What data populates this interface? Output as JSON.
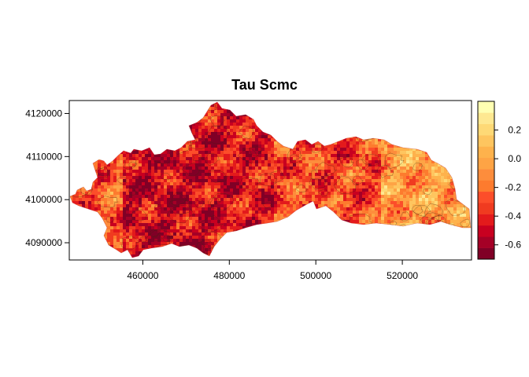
{
  "title": "Tau  Scmc",
  "x_ticks": [
    {
      "value": 460000,
      "label": "460000"
    },
    {
      "value": 480000,
      "label": "480000"
    },
    {
      "value": 500000,
      "label": "500000"
    },
    {
      "value": 520000,
      "label": "520000"
    }
  ],
  "y_ticks": [
    {
      "value": 4090000,
      "label": "4090000"
    },
    {
      "value": 4100000,
      "label": "4100000"
    },
    {
      "value": 4110000,
      "label": "4110000"
    },
    {
      "value": 4120000,
      "label": "4120000"
    }
  ],
  "legend": {
    "ticks": [
      {
        "value": 0.2,
        "label": "0.2"
      },
      {
        "value": 0.0,
        "label": "0.0"
      },
      {
        "value": -0.2,
        "label": "-0.2"
      },
      {
        "value": -0.4,
        "label": "-0.4"
      },
      {
        "value": -0.6,
        "label": "-0.6"
      }
    ],
    "min": -0.7,
    "max": 0.4,
    "colors": [
      "#800026",
      "#a50026",
      "#c80020",
      "#e31a1c",
      "#f03b20",
      "#fc4e2a",
      "#fd7b2e",
      "#fd8d3c",
      "#fea445",
      "#feb24c",
      "#fec55f",
      "#fed976",
      "#fee891",
      "#ffffb2"
    ]
  },
  "chart_data": {
    "type": "heatmap",
    "title": "Tau  Scmc",
    "x_range": [
      443000,
      536000
    ],
    "y_range": [
      4086000,
      4123000
    ],
    "value_range": [
      -0.7,
      0.4
    ],
    "color_scale": "heat (dark red = low, light yellow = high)",
    "note": "raster map with contour lines; values by region",
    "regions": [
      {
        "area": "west-central (455000-475000)",
        "typical_value": -0.5
      },
      {
        "area": "central (475000-490000)",
        "typical_value": -0.45
      },
      {
        "area": "central-east (490000-515000)",
        "typical_value": -0.3
      },
      {
        "area": "east (515000-535000)",
        "typical_value": -0.05
      }
    ]
  }
}
